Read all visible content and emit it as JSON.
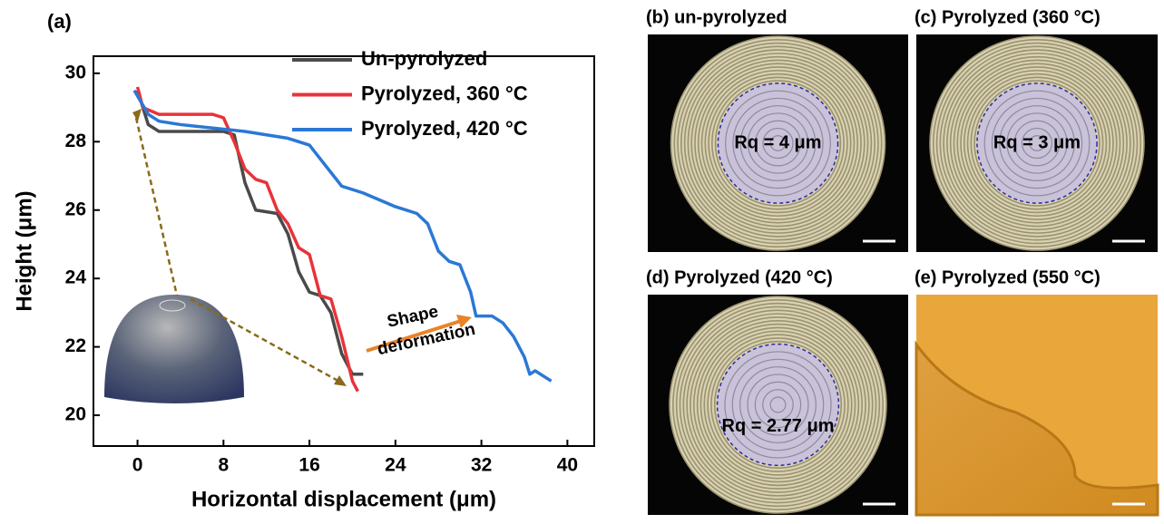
{
  "chart_data": {
    "type": "line",
    "panel_label": "(a)",
    "x_label": "Horizontal displacement (μm)",
    "y_label": "Height (μm)",
    "xlim": [
      -4.1,
      42.5
    ],
    "ylim": [
      19.1,
      30.5
    ],
    "xticks": [
      0,
      8,
      16,
      24,
      32,
      40
    ],
    "yticks": [
      20,
      22,
      24,
      26,
      28,
      30
    ],
    "annotation": [
      "Shape",
      "deformation"
    ],
    "series": [
      {
        "name": "Un-pyrolyzed",
        "color": "#4a4a4a",
        "x": [
          0,
          1,
          2,
          8,
          9,
          10,
          11,
          13,
          14,
          15,
          16,
          17,
          18,
          19,
          20,
          21
        ],
        "values": [
          29.5,
          28.5,
          28.3,
          28.3,
          28.2,
          26.8,
          26,
          25.9,
          25.3,
          24.2,
          23.6,
          23.5,
          23,
          21.8,
          21.2,
          21.2
        ]
      },
      {
        "name": "Pyrolyzed, 360 °C",
        "color": "#e8333a",
        "x": [
          0,
          0.5,
          2,
          7,
          8,
          9,
          10,
          11,
          12,
          13,
          14,
          15,
          16,
          17,
          18,
          19,
          20,
          20.5
        ],
        "values": [
          29.6,
          29,
          28.8,
          28.8,
          28.7,
          28,
          27.2,
          26.9,
          26.8,
          26,
          25.6,
          24.9,
          24.7,
          23.5,
          23.4,
          22.3,
          21,
          20.7
        ]
      },
      {
        "name": "Pyrolyzed, 420 °C",
        "color": "#2a78d6",
        "x": [
          -0.3,
          1,
          2,
          4,
          7,
          10,
          14,
          16,
          17,
          18,
          19,
          21,
          24,
          26,
          27,
          28,
          29,
          30,
          31,
          31.5,
          33,
          34,
          35,
          36,
          36.5,
          37,
          38.5
        ],
        "values": [
          29.5,
          28.8,
          28.6,
          28.5,
          28.4,
          28.3,
          28.1,
          27.9,
          27.5,
          27.1,
          26.7,
          26.5,
          26.1,
          25.9,
          25.6,
          24.8,
          24.5,
          24.4,
          23.6,
          22.9,
          22.9,
          22.7,
          22.3,
          21.7,
          21.2,
          21.3,
          21
        ]
      }
    ]
  },
  "panels": [
    {
      "title": "(b) un-pyrolyzed",
      "roughness": "Rq = 4 μm"
    },
    {
      "title": "(c) Pyrolyzed (360 °C)",
      "roughness": "Rq = 3 μm"
    },
    {
      "title": "(d) Pyrolyzed (420 °C)",
      "roughness": "Rq = 2.77 μm"
    },
    {
      "title": "(e) Pyrolyzed (550 °C)"
    }
  ]
}
